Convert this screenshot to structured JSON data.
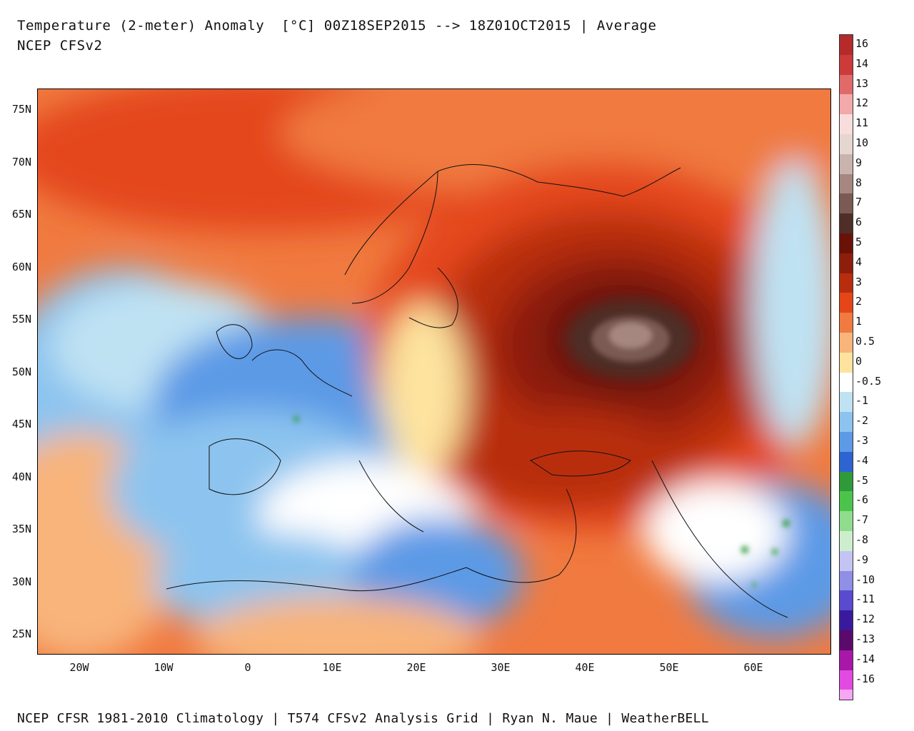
{
  "header": {
    "title_line1": "Temperature (2-meter) Anomaly  [°C] 00Z18SEP2015 --> 18Z01OCT2015 | Average",
    "title_line2": "NCEP CFSv2"
  },
  "footer": {
    "text": "NCEP CFSR 1981-2010 Climatology | T574 CFSv2 Analysis Grid | Ryan N. Maue | WeatherBELL"
  },
  "map": {
    "region": "Europe / North Africa / Middle East",
    "lon_range": [
      -25,
      69
    ],
    "lat_range": [
      23,
      77
    ],
    "lat_ticks": [
      "75N",
      "70N",
      "65N",
      "60N",
      "55N",
      "50N",
      "45N",
      "40N",
      "35N",
      "30N",
      "25N"
    ],
    "lon_ticks": [
      "20W",
      "10W",
      "0",
      "10E",
      "20E",
      "30E",
      "40E",
      "50E",
      "60E"
    ],
    "max_anomaly_center": "near 45E 53N (above +7 °C)",
    "colors": {
      "warm_strong": "#8b2a10",
      "warm_mid": "#e8501e",
      "warm_light": "#f59c6a",
      "neutral": "#ffffff",
      "cool_light": "#b8dff2",
      "cool_mid": "#6aaae6",
      "cool_strong": "#2a5fc8",
      "extreme_warm": "#7a6660"
    }
  },
  "colorbar": {
    "title": "°C",
    "levels": [
      {
        "label": "16",
        "color": "#b52a2a"
      },
      {
        "label": "14",
        "color": "#cc3a3a"
      },
      {
        "label": "13",
        "color": "#e06a6a"
      },
      {
        "label": "12",
        "color": "#f2a9a9"
      },
      {
        "label": "11",
        "color": "#f9dcdc"
      },
      {
        "label": "10",
        "color": "#e6d6d0"
      },
      {
        "label": "9",
        "color": "#c9b3ad"
      },
      {
        "label": "8",
        "color": "#a6877f"
      },
      {
        "label": "7",
        "color": "#7a5a52"
      },
      {
        "label": "6",
        "color": "#4e2e26"
      },
      {
        "label": "5",
        "color": "#6a1208"
      },
      {
        "label": "4",
        "color": "#8e1e0c"
      },
      {
        "label": "3",
        "color": "#b82d0e"
      },
      {
        "label": "2",
        "color": "#e4461a"
      },
      {
        "label": "1",
        "color": "#f07a40"
      },
      {
        "label": "0.5",
        "color": "#f8b47a"
      },
      {
        "label": "0",
        "color": "#fde39e"
      },
      {
        "label": "-0.5",
        "color": "#ffffff"
      },
      {
        "label": "-1",
        "color": "#bfe2f3"
      },
      {
        "label": "-2",
        "color": "#8cc4ef"
      },
      {
        "label": "-3",
        "color": "#5c9ae6"
      },
      {
        "label": "-4",
        "color": "#2e64d2"
      },
      {
        "label": "-5",
        "color": "#2e9a3a"
      },
      {
        "label": "-6",
        "color": "#4cc44c"
      },
      {
        "label": "-7",
        "color": "#8fdc8f"
      },
      {
        "label": "-8",
        "color": "#cdeecd"
      },
      {
        "label": "-9",
        "color": "#c4c4f2"
      },
      {
        "label": "-10",
        "color": "#8f8fe6"
      },
      {
        "label": "-11",
        "color": "#5a4ad0"
      },
      {
        "label": "-12",
        "color": "#3a1a9c"
      },
      {
        "label": "-13",
        "color": "#5a0a6a"
      },
      {
        "label": "-14",
        "color": "#a818a8"
      },
      {
        "label": "-16",
        "color": "#e24ae2"
      }
    ],
    "bottom_color": "#f6a6f2"
  }
}
